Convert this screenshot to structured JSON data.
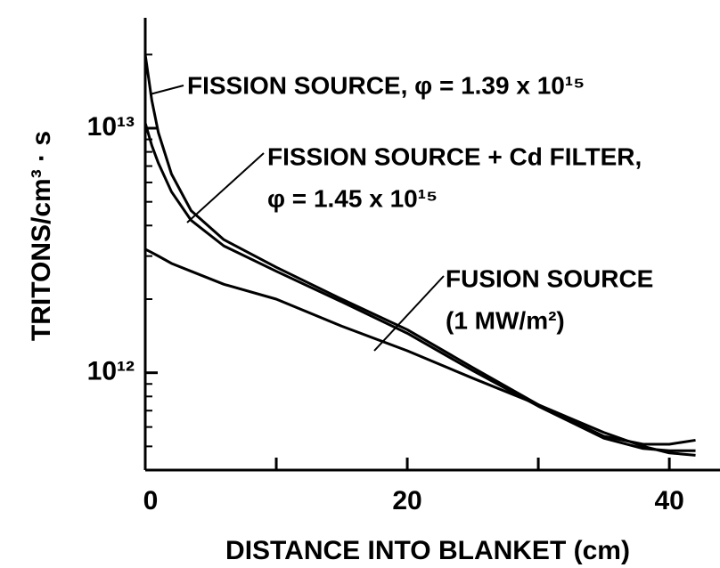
{
  "chart_data": {
    "type": "line",
    "y_label": "TRITONS/cm³ · s",
    "x_label": "DISTANCE INTO BLANKET (cm)",
    "x": [
      0,
      0.5,
      1,
      2,
      3.5,
      6,
      10,
      15,
      20,
      25,
      30,
      35,
      38,
      40,
      42
    ],
    "series": [
      {
        "color": "#000000",
        "values": [
          20000000000000.0,
          13000000000000.0,
          9600000000000.0,
          6500000000000.0,
          4600000000000.0,
          3500000000000.0,
          2700000000000.0,
          2000000000000.0,
          1500000000000.0,
          1050000000000.0,
          740000000000.0,
          550000000000.0,
          510000000000.0,
          510000000000.0,
          530000000000.0
        ]
      },
      {
        "color": "#000000",
        "values": [
          10500000000000.0,
          8500000000000.0,
          7200000000000.0,
          5500000000000.0,
          4200000000000.0,
          3300000000000.0,
          2600000000000.0,
          1950000000000.0,
          1450000000000.0,
          1020000000000.0,
          730000000000.0,
          540000000000.0,
          490000000000.0,
          480000000000.0,
          480000000000.0
        ]
      },
      {
        "color": "#000000",
        "values": [
          3200000000000.0,
          3100000000000.0,
          3000000000000.0,
          2800000000000.0,
          2600000000000.0,
          2300000000000.0,
          2000000000000.0,
          1550000000000.0,
          1230000000000.0,
          950000000000.0,
          740000000000.0,
          570000000000.0,
          500000000000.0,
          470000000000.0,
          460000000000.0
        ]
      }
    ],
    "annotations": [
      "FISSION SOURCE, φ = 1.39 x 10¹⁵",
      "FISSION SOURCE + Cd FILTER,",
      "φ = 1.45 x 10¹⁵",
      "FUSION SOURCE",
      "(1 MW/m²)"
    ],
    "xlim": [
      0,
      43.8
    ],
    "xticks": [
      0,
      20,
      40
    ],
    "xminor": [
      10,
      30
    ],
    "ylim": [
      400000000000.0,
      26000000000000.0
    ],
    "log_y": true,
    "yticks": [
      {
        "value": 1000000000000.0,
        "label": "10¹²"
      },
      {
        "value": 10000000000000.0,
        "label": "10¹³"
      }
    ],
    "yminor": [
      500000000000.0,
      600000000000.0,
      700000000000.0,
      800000000000.0,
      900000000000.0,
      2000000000000.0,
      3000000000000.0,
      4000000000000.0,
      5000000000000.0,
      6000000000000.0,
      7000000000000.0,
      8000000000000.0,
      9000000000000.0,
      20000000000000.0
    ]
  }
}
